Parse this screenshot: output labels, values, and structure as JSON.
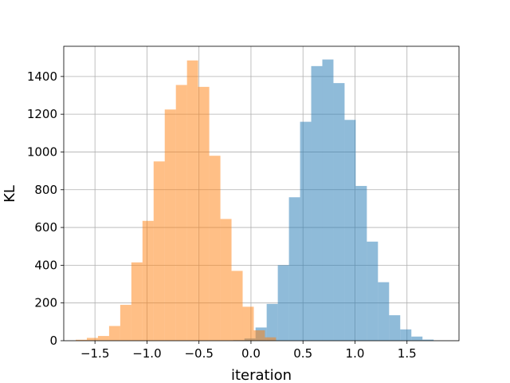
{
  "chart_data": {
    "type": "bar",
    "title": "",
    "xlabel": "iteration",
    "ylabel": "KL",
    "xlim": [
      -1.8,
      2.0
    ],
    "ylim": [
      0,
      1560
    ],
    "grid": true,
    "legend": "none",
    "xticks": [
      -1.5,
      -1.0,
      -0.5,
      0.0,
      0.5,
      1.0,
      1.5
    ],
    "xtick_labels": [
      "−1.5",
      "−1.0",
      "−0.5",
      "0.0",
      "0.5",
      "1.0",
      "1.5"
    ],
    "yticks": [
      0,
      200,
      400,
      600,
      800,
      1000,
      1200,
      1400
    ],
    "ytick_labels": [
      "0",
      "200",
      "400",
      "600",
      "800",
      "1000",
      "1200",
      "1400"
    ],
    "series": [
      {
        "color": "#1f77b4",
        "opacity": 0.5,
        "bin_width": 0.107,
        "bin_starts": [
          -0.17,
          -0.063,
          0.044,
          0.151,
          0.258,
          0.365,
          0.472,
          0.579,
          0.686,
          0.793,
          0.9,
          1.007,
          1.114,
          1.221,
          1.328,
          1.435,
          1.542,
          1.649
        ],
        "values": [
          3,
          12,
          70,
          195,
          400,
          760,
          1160,
          1455,
          1490,
          1365,
          1170,
          820,
          525,
          310,
          135,
          60,
          22,
          6
        ]
      },
      {
        "color": "#ff7f0e",
        "opacity": 0.5,
        "bin_width": 0.107,
        "bin_starts": [
          -1.685,
          -1.578,
          -1.471,
          -1.364,
          -1.257,
          -1.15,
          -1.043,
          -0.936,
          -0.829,
          -0.722,
          -0.615,
          -0.508,
          -0.401,
          -0.294,
          -0.187,
          -0.08,
          0.027,
          0.134
        ],
        "values": [
          5,
          15,
          25,
          78,
          190,
          415,
          635,
          950,
          1225,
          1355,
          1485,
          1345,
          980,
          645,
          370,
          180,
          55,
          18
        ]
      }
    ]
  }
}
